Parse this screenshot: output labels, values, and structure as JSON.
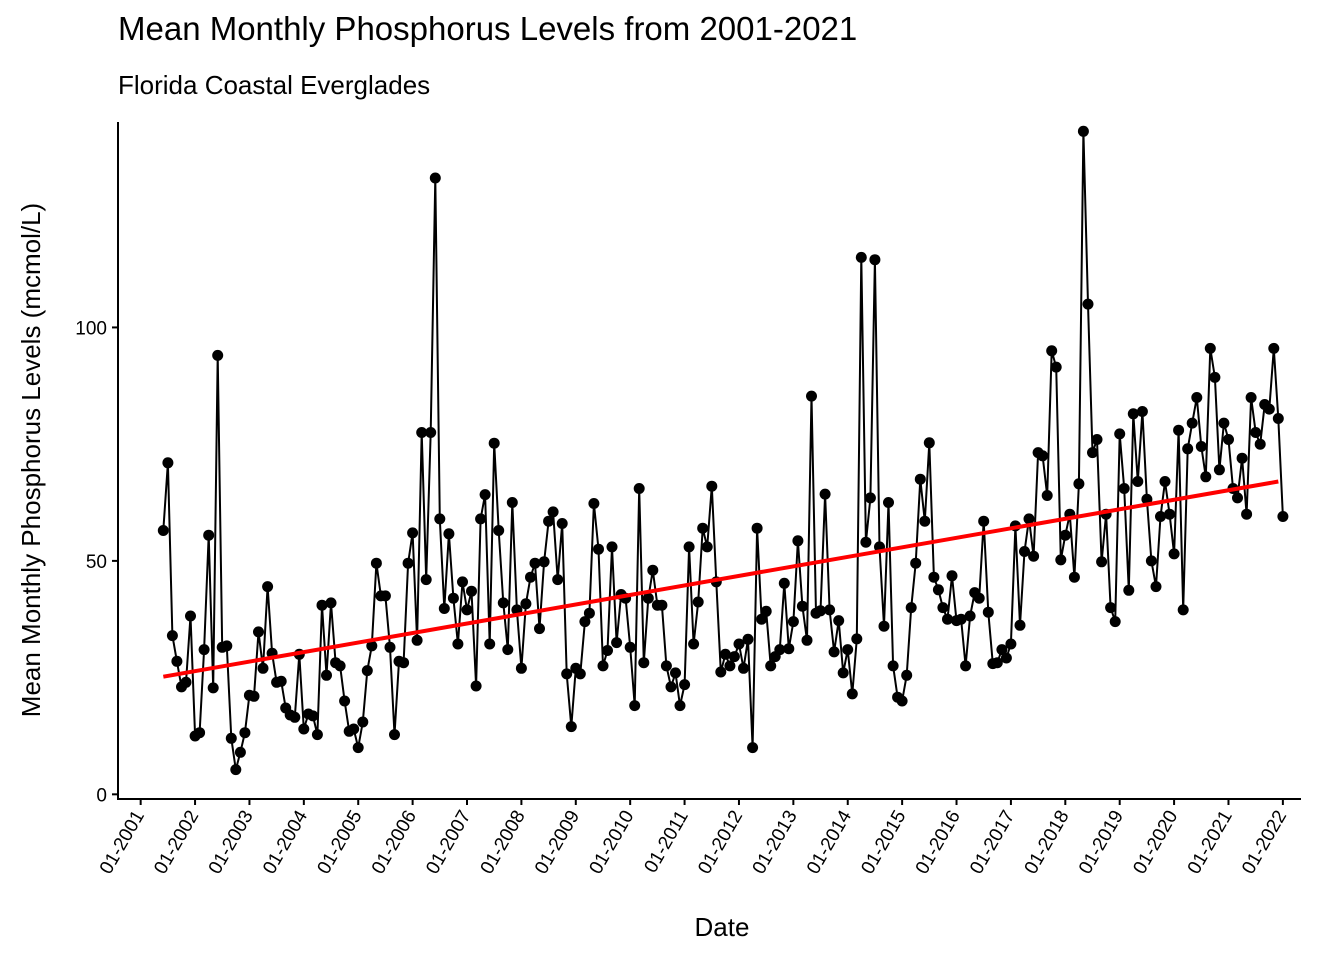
{
  "chart_data": {
    "type": "line",
    "title": "Mean Monthly Phosphorus Levels from 2001-2021",
    "subtitle": "Florida Coastal Everglades",
    "xlabel": "Date",
    "ylabel": "Mean Monthly Phosphorus Levels (mcmol/L)",
    "x_ticks": [
      "01-2001",
      "01-2002",
      "01-2003",
      "01-2004",
      "01-2005",
      "01-2006",
      "01-2007",
      "01-2008",
      "01-2009",
      "01-2010",
      "01-2011",
      "01-2012",
      "01-2013",
      "01-2014",
      "01-2015",
      "01-2016",
      "01-2017",
      "01-2018",
      "01-2019",
      "01-2020",
      "01-2021",
      "01-2022"
    ],
    "y_ticks": [
      0,
      50,
      100
    ],
    "ylim": [
      -1,
      144
    ],
    "xlim": [
      "2000-08",
      "2022-05"
    ],
    "grid": false,
    "series": [
      {
        "type": "line+points",
        "color": "#000000",
        "start_month": "2001-06",
        "values": [
          56.5,
          71.0,
          34.0,
          28.5,
          23.0,
          24.0,
          38.2,
          12.5,
          13.2,
          31.0,
          55.5,
          22.8,
          94.0,
          31.5,
          31.8,
          12.0,
          5.3,
          9.0,
          13.2,
          21.2,
          21.0,
          34.8,
          27.0,
          44.5,
          30.2,
          24.0,
          24.2,
          18.5,
          17.0,
          16.5,
          30.0,
          14.0,
          17.2,
          16.8,
          12.8,
          40.5,
          25.5,
          41.0,
          28.2,
          27.5,
          20.0,
          13.5,
          14.0,
          10.0,
          15.5,
          26.5,
          31.8,
          49.5,
          42.5,
          42.5,
          31.5,
          12.8,
          28.5,
          28.2,
          49.5,
          56.0,
          33.0,
          77.5,
          46.0,
          77.5,
          132.0,
          59.0,
          39.8,
          55.8,
          42.0,
          32.2,
          45.5,
          39.5,
          43.5,
          23.2,
          59.0,
          64.2,
          32.2,
          75.2,
          56.5,
          41.0,
          31.0,
          62.5,
          39.5,
          27.0,
          40.8,
          46.5,
          49.5,
          35.5,
          49.8,
          58.5,
          60.5,
          46.0,
          58.0,
          25.8,
          14.5,
          27.0,
          25.8,
          37.0,
          38.8,
          62.3,
          52.5,
          27.5,
          30.8,
          53.0,
          32.5,
          42.8,
          42.0,
          31.5,
          19.0,
          65.5,
          28.2,
          42.0,
          48.0,
          40.5,
          40.5,
          27.5,
          23.0,
          26.0,
          19.0,
          23.5,
          53.0,
          32.2,
          41.2,
          57.0,
          53.0,
          66.0,
          45.5,
          26.2,
          30.0,
          27.5,
          29.5,
          32.2,
          27.0,
          33.2,
          10.0,
          57.0,
          37.5,
          39.2,
          27.5,
          29.5,
          31.0,
          45.2,
          31.2,
          37.0,
          54.3,
          40.3,
          33.0,
          85.3,
          38.8,
          39.3,
          64.3,
          39.5,
          30.5,
          37.2,
          26.0,
          31.0,
          21.5,
          33.3,
          115.0,
          54.0,
          63.5,
          114.5,
          53.0,
          36.0,
          62.5,
          27.5,
          20.8,
          20.0,
          25.5,
          40.0,
          49.5,
          67.5,
          58.5,
          75.3,
          46.5,
          43.8,
          40.0,
          37.5,
          46.8,
          37.2,
          37.5,
          27.5,
          38.2,
          43.2,
          42.0,
          58.5,
          39.0,
          28.0,
          28.2,
          31.0,
          29.2,
          32.2,
          57.5,
          36.2,
          52.0,
          59.0,
          51.0,
          73.2,
          72.5,
          64.0,
          95.0,
          91.5,
          50.2,
          55.5,
          60.0,
          46.5,
          66.5,
          142.0,
          105.0,
          73.2,
          76.0,
          49.8,
          60.0,
          40.0,
          37.0,
          77.2,
          65.5,
          43.7,
          81.5,
          67.0,
          82.0,
          63.2,
          50.0,
          44.5,
          59.5,
          67.0,
          60.0,
          51.5,
          78.0,
          39.5,
          74.0,
          79.5,
          85.0,
          74.5,
          68.0,
          95.5,
          89.3,
          69.5,
          79.5,
          76.0,
          65.5,
          63.5,
          72.0,
          60.0,
          85.0,
          77.5,
          75.0,
          83.5,
          82.5,
          95.5,
          80.5,
          59.5
        ]
      },
      {
        "type": "linear-fit",
        "color": "#ff0000",
        "x_start": "2001-06",
        "x_end": "2021-12",
        "y_start": 25.2,
        "y_end": 67.0
      }
    ]
  }
}
